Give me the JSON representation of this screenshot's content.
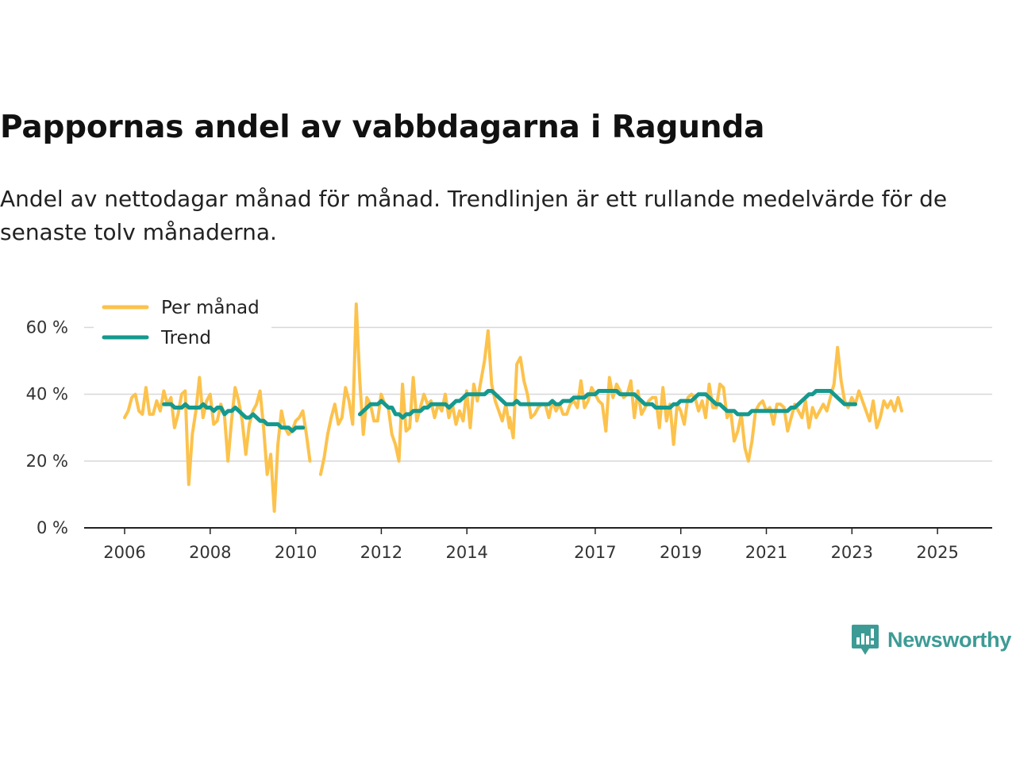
{
  "title": "Pappornas andel av vabbdagarna i Ragunda",
  "subtitle": "Andel av nettodagar månad för månad. Trendlinjen är ett rullande medelvärde för de senaste tolv månaderna.",
  "brand": {
    "name": "Newsworthy"
  },
  "colors": {
    "monthly": "#fcc24c",
    "trend": "#15998e",
    "grid": "#d8d8d8",
    "axis": "#222222"
  },
  "chart_data": {
    "type": "line",
    "title": "Pappornas andel av vabbdagarna i Ragunda",
    "xlabel": "",
    "ylabel": "",
    "ylim": [
      0,
      72
    ],
    "xlim": [
      2005.9,
      2026.3
    ],
    "yticks": [
      0,
      20,
      40,
      60
    ],
    "ytick_labels": [
      "0 %",
      "20 %",
      "40 %",
      "60 %"
    ],
    "xticks": [
      2006,
      2008,
      2010,
      2012,
      2014,
      2017,
      2019,
      2021,
      2023,
      2025
    ],
    "xtick_labels": [
      "2006",
      "2008",
      "2010",
      "2012",
      "2014",
      "2017",
      "2019",
      "2021",
      "2023",
      "2025"
    ],
    "legend": {
      "position": "top-left",
      "entries": [
        "Per månad",
        "Trend"
      ]
    },
    "series": [
      {
        "name": "Per månad",
        "color": "#fcc24c",
        "segments": [
          {
            "start": 2006.0,
            "step": 0.0833,
            "values": [
              33,
              35,
              39,
              40,
              35,
              34,
              42,
              34,
              34,
              38,
              35,
              41,
              37,
              39,
              30,
              34,
              40,
              41,
              13,
              28,
              35,
              45,
              33,
              38,
              40,
              31,
              32,
              37,
              34,
              20,
              32,
              42,
              38,
              32,
              22,
              31,
              35,
              37,
              41,
              30,
              16,
              22,
              5,
              25,
              35,
              30,
              28,
              29,
              32,
              33,
              35,
              28,
              20
            ]
          },
          {
            "start": 2010.58,
            "step": 0.0833,
            "values": [
              16,
              21,
              28,
              33,
              37,
              31,
              33,
              42,
              38,
              31,
              67,
              44,
              28,
              39,
              37,
              32,
              32,
              40,
              37,
              36,
              28,
              25,
              20,
              43,
              29,
              30,
              45,
              32,
              36,
              40,
              37,
              38,
              33,
              37,
              35,
              40,
              33,
              37,
              31,
              35,
              32,
              41,
              30,
              43,
              38,
              44,
              50,
              59,
              43,
              38,
              35,
              32,
              37,
              30
            ]
          },
          {
            "start": 2015.0,
            "step": 0.0833,
            "values": [
              33,
              27,
              49,
              51,
              44,
              40,
              33,
              34,
              36,
              37,
              37,
              33,
              38,
              35,
              37,
              34,
              34,
              37,
              38,
              36,
              44,
              36,
              38,
              42,
              40,
              38,
              37,
              29,
              45,
              39,
              43,
              41,
              39,
              40,
              44,
              33,
              41,
              34,
              36,
              38,
              39,
              39,
              30,
              42,
              32,
              37,
              25,
              37,
              35,
              31,
              39,
              40,
              39,
              35,
              38,
              33,
              43,
              36,
              36,
              43,
              42,
              33,
              35,
              26,
              29,
              34,
              24,
              20,
              26,
              35,
              37,
              38,
              35,
              36,
              31,
              37,
              37,
              36,
              29,
              33,
              37,
              35,
              33,
              38,
              30,
              36,
              33,
              35,
              37,
              35,
              39,
              43,
              54,
              44,
              38,
              36,
              39,
              37,
              41,
              38,
              35,
              32,
              38,
              30,
              33,
              38,
              36,
              38,
              35,
              39,
              35
            ]
          }
        ]
      },
      {
        "name": "Trend",
        "color": "#15998e",
        "segments": [
          {
            "start": 2006.92,
            "step": 0.0833,
            "values": [
              37,
              37,
              37,
              36,
              36,
              36,
              37,
              36,
              36,
              36,
              36,
              37,
              36,
              36,
              35,
              36,
              36,
              34,
              35,
              35,
              36,
              35,
              34,
              33,
              33,
              34,
              33,
              32,
              32,
              31,
              31,
              31,
              31,
              30,
              30,
              30,
              29,
              30,
              30,
              30
            ]
          },
          {
            "start": 2011.5,
            "step": 0.0833,
            "values": [
              34,
              35,
              36,
              37,
              37,
              37,
              38,
              37,
              36,
              36,
              34,
              34,
              33,
              34,
              34,
              35,
              35,
              35,
              36,
              36,
              37,
              37,
              37,
              37,
              37,
              36,
              37,
              38,
              38,
              39,
              40,
              40,
              40,
              40,
              40,
              40,
              41,
              41,
              40,
              39,
              38,
              37,
              37,
              37,
              38,
              37,
              37,
              37,
              37,
              37,
              37,
              37,
              37,
              37,
              38,
              37,
              37,
              38,
              38,
              38,
              39,
              39,
              39,
              39,
              40,
              40,
              40,
              41,
              41,
              41,
              41,
              41,
              41,
              40,
              40,
              40,
              40,
              40,
              39,
              38,
              37,
              37,
              37,
              36,
              36,
              36,
              36,
              36,
              37,
              37,
              38,
              38,
              38,
              38,
              39,
              40,
              40,
              40,
              39,
              38,
              37,
              37,
              36,
              35,
              35,
              35,
              34,
              34,
              34,
              34,
              35,
              35,
              35,
              35,
              35,
              35,
              35,
              35,
              35,
              35,
              35,
              36,
              36,
              37,
              38,
              39,
              40,
              40,
              41,
              41,
              41,
              41,
              41,
              40,
              39,
              38,
              37,
              37,
              37,
              37
            ]
          }
        ]
      }
    ]
  }
}
